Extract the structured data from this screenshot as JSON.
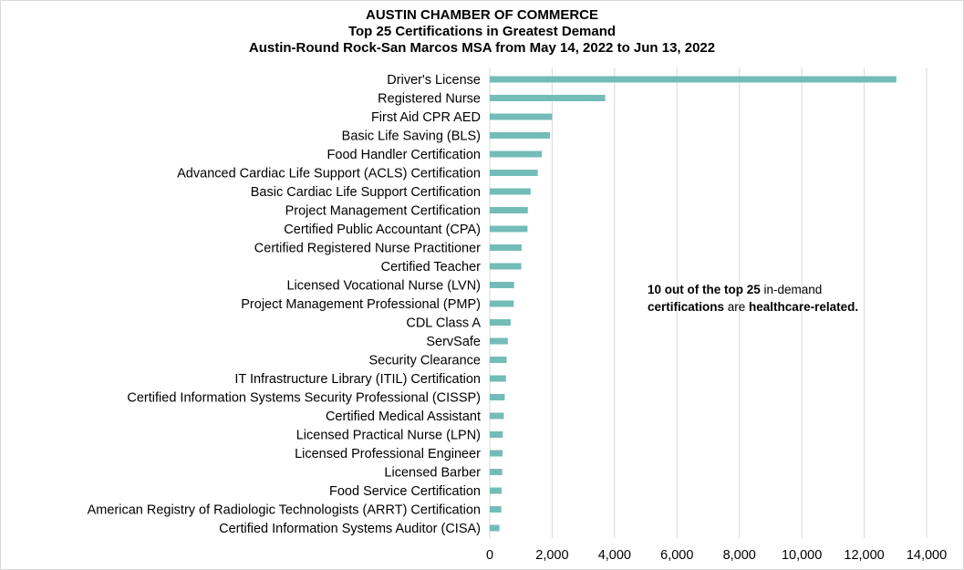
{
  "title": {
    "line1": "AUSTIN CHAMBER OF COMMERCE",
    "line2": "Top 25 Certifications in Greatest Demand",
    "line3": "Austin-Round Rock-San Marcos MSA from May 14, 2022 to Jun 13, 2022"
  },
  "annotation": {
    "line1_bold_a": "10 out of the top 25",
    "line1_rest": " in-demand",
    "line2_bold_a": "certifications",
    "line2_mid": " are ",
    "line2_bold_b": "healthcare-related."
  },
  "colors": {
    "bar": "#74bcb7",
    "grid": "#d9d9d9",
    "text": "#000000"
  },
  "chart_data": {
    "type": "bar",
    "orientation": "horizontal",
    "categories": [
      "Driver's License",
      "Registered Nurse",
      "First Aid CPR AED",
      "Basic Life Saving (BLS)",
      "Food Handler Certification",
      "Advanced Cardiac Life Support (ACLS) Certification",
      "Basic Cardiac Life Support Certification",
      "Project Management Certification",
      "Certified Public Accountant (CPA)",
      "Certified Registered Nurse Practitioner",
      "Certified Teacher",
      "Licensed Vocational Nurse (LVN)",
      "Project Management Professional (PMP)",
      "CDL Class A",
      "ServSafe",
      "Security Clearance",
      "IT Infrastructure Library (ITIL) Certification",
      "Certified Information Systems Security Professional (CISSP)",
      "Certified Medical Assistant",
      "Licensed Practical Nurse (LPN)",
      "Licensed Professional Engineer",
      "Licensed Barber",
      "Food Service Certification",
      "American Registry of Radiologic Technologists (ARRT) Certification",
      "Certified Information Systems Auditor (CISA)"
    ],
    "values": [
      13030,
      3700,
      2000,
      1930,
      1670,
      1540,
      1310,
      1220,
      1210,
      1020,
      1010,
      780,
      770,
      670,
      580,
      540,
      520,
      480,
      450,
      420,
      410,
      400,
      380,
      370,
      310
    ],
    "xlim": [
      0,
      14000
    ],
    "xticks": [
      0,
      2000,
      4000,
      6000,
      8000,
      10000,
      12000,
      14000
    ],
    "xtick_labels": [
      "0",
      "2,000",
      "4,000",
      "6,000",
      "8,000",
      "10,000",
      "12,000",
      "14,000"
    ],
    "grid": "vertical",
    "legend": "none",
    "xlabel": "",
    "ylabel": ""
  }
}
